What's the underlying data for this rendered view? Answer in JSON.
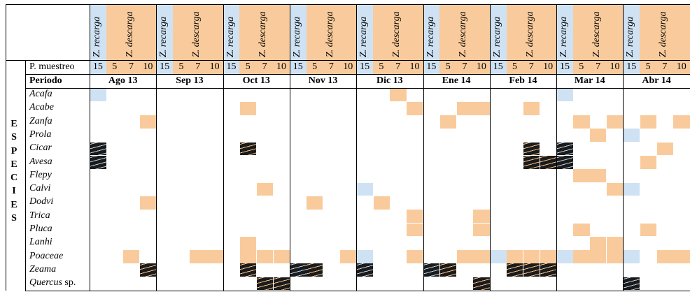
{
  "zone_headers": {
    "recarga": "Z. recarga",
    "descarga": "Z. descarga"
  },
  "row_labels": {
    "sampling": "P. muestreo",
    "period": "Periodo"
  },
  "sampling_points": [
    "15",
    "5",
    "7",
    "10"
  ],
  "months": [
    "Ago 13",
    "Sep 13",
    "Oct 13",
    "Nov 13",
    "Dic 13",
    "Ene 14",
    "Feb 14",
    "Mar 14",
    "Abr 14"
  ],
  "side_label": "E S P E C I E S",
  "species": [
    "Acafa",
    "Acabe",
    "Zanfa",
    "Prola",
    "Cicar",
    "Avesa",
    "Flepy",
    "Calvi",
    "Dodvi",
    "Trica",
    "Pluca",
    "Lanhi",
    "Poaceae",
    "Zeama",
    "Quercus"
  ],
  "species_suffix": {
    "Quercus": "sp."
  },
  "colors": {
    "recarga": "#cfe2f3",
    "descarga": "#f9cb9c",
    "hatched": "#1b1b1b"
  },
  "cells": [
    {
      "species": 0,
      "month": 0,
      "point": 0,
      "fill": "blue"
    },
    {
      "species": 0,
      "month": 4,
      "point": 2,
      "fill": "orange"
    },
    {
      "species": 0,
      "month": 7,
      "point": 0,
      "fill": "blue"
    },
    {
      "species": 1,
      "month": 2,
      "point": 1,
      "fill": "orange"
    },
    {
      "species": 1,
      "month": 4,
      "point": 3,
      "fill": "orange"
    },
    {
      "species": 1,
      "month": 5,
      "point": 2,
      "fill": "orange"
    },
    {
      "species": 1,
      "month": 5,
      "point": 3,
      "fill": "orange"
    },
    {
      "species": 1,
      "month": 6,
      "point": 2,
      "fill": "orange"
    },
    {
      "species": 2,
      "month": 0,
      "point": 3,
      "fill": "orange"
    },
    {
      "species": 2,
      "month": 5,
      "point": 1,
      "fill": "orange"
    },
    {
      "species": 2,
      "month": 7,
      "point": 1,
      "fill": "orange"
    },
    {
      "species": 2,
      "month": 7,
      "point": 3,
      "fill": "orange"
    },
    {
      "species": 2,
      "month": 8,
      "point": 1,
      "fill": "orange"
    },
    {
      "species": 2,
      "month": 8,
      "point": 3,
      "fill": "orange"
    },
    {
      "species": 3,
      "month": 7,
      "point": 2,
      "fill": "orange"
    },
    {
      "species": 3,
      "month": 8,
      "point": 0,
      "fill": "blue"
    },
    {
      "species": 4,
      "month": 0,
      "point": 0,
      "fill": "hatch-b"
    },
    {
      "species": 4,
      "month": 2,
      "point": 1,
      "fill": "hatch-o"
    },
    {
      "species": 4,
      "month": 6,
      "point": 2,
      "fill": "hatch-o"
    },
    {
      "species": 4,
      "month": 7,
      "point": 0,
      "fill": "hatch-b"
    },
    {
      "species": 4,
      "month": 8,
      "point": 2,
      "fill": "orange"
    },
    {
      "species": 5,
      "month": 0,
      "point": 0,
      "fill": "hatch-b"
    },
    {
      "species": 5,
      "month": 6,
      "point": 2,
      "fill": "hatch-o"
    },
    {
      "species": 5,
      "month": 6,
      "point": 3,
      "fill": "hatch-o"
    },
    {
      "species": 5,
      "month": 7,
      "point": 0,
      "fill": "hatch-b"
    },
    {
      "species": 5,
      "month": 8,
      "point": 1,
      "fill": "orange"
    },
    {
      "species": 6,
      "month": 7,
      "point": 1,
      "fill": "orange"
    },
    {
      "species": 6,
      "month": 7,
      "point": 2,
      "fill": "orange"
    },
    {
      "species": 7,
      "month": 2,
      "point": 2,
      "fill": "orange"
    },
    {
      "species": 7,
      "month": 4,
      "point": 0,
      "fill": "blue"
    },
    {
      "species": 7,
      "month": 7,
      "point": 3,
      "fill": "orange"
    },
    {
      "species": 7,
      "month": 8,
      "point": 0,
      "fill": "blue"
    },
    {
      "species": 8,
      "month": 0,
      "point": 3,
      "fill": "orange"
    },
    {
      "species": 8,
      "month": 3,
      "point": 1,
      "fill": "orange"
    },
    {
      "species": 8,
      "month": 4,
      "point": 1,
      "fill": "orange"
    },
    {
      "species": 9,
      "month": 4,
      "point": 3,
      "fill": "orange"
    },
    {
      "species": 9,
      "month": 5,
      "point": 3,
      "fill": "orange"
    },
    {
      "species": 10,
      "month": 4,
      "point": 3,
      "fill": "orange"
    },
    {
      "species": 10,
      "month": 5,
      "point": 3,
      "fill": "orange"
    },
    {
      "species": 10,
      "month": 7,
      "point": 1,
      "fill": "orange"
    },
    {
      "species": 10,
      "month": 8,
      "point": 1,
      "fill": "orange"
    },
    {
      "species": 11,
      "month": 2,
      "point": 1,
      "fill": "orange"
    },
    {
      "species": 11,
      "month": 7,
      "point": 2,
      "fill": "orange"
    },
    {
      "species": 11,
      "month": 7,
      "point": 3,
      "fill": "orange"
    },
    {
      "species": 12,
      "month": 0,
      "point": 2,
      "fill": "orange"
    },
    {
      "species": 12,
      "month": 1,
      "point": 2,
      "fill": "orange"
    },
    {
      "species": 12,
      "month": 1,
      "point": 3,
      "fill": "orange"
    },
    {
      "species": 12,
      "month": 2,
      "point": 1,
      "fill": "orange"
    },
    {
      "species": 12,
      "month": 2,
      "point": 2,
      "fill": "orange"
    },
    {
      "species": 12,
      "month": 2,
      "point": 3,
      "fill": "orange"
    },
    {
      "species": 12,
      "month": 3,
      "point": 3,
      "fill": "orange"
    },
    {
      "species": 12,
      "month": 4,
      "point": 0,
      "fill": "blue"
    },
    {
      "species": 12,
      "month": 4,
      "point": 3,
      "fill": "orange"
    },
    {
      "species": 12,
      "month": 5,
      "point": 2,
      "fill": "orange"
    },
    {
      "species": 12,
      "month": 5,
      "point": 3,
      "fill": "orange"
    },
    {
      "species": 12,
      "month": 6,
      "point": 0,
      "fill": "blue"
    },
    {
      "species": 12,
      "month": 6,
      "point": 1,
      "fill": "orange"
    },
    {
      "species": 12,
      "month": 6,
      "point": 2,
      "fill": "orange"
    },
    {
      "species": 12,
      "month": 6,
      "point": 3,
      "fill": "orange"
    },
    {
      "species": 12,
      "month": 7,
      "point": 0,
      "fill": "blue"
    },
    {
      "species": 12,
      "month": 7,
      "point": 1,
      "fill": "orange"
    },
    {
      "species": 12,
      "month": 7,
      "point": 2,
      "fill": "orange"
    },
    {
      "species": 12,
      "month": 7,
      "point": 3,
      "fill": "orange"
    },
    {
      "species": 12,
      "month": 8,
      "point": 0,
      "fill": "blue"
    },
    {
      "species": 12,
      "month": 8,
      "point": 2,
      "fill": "orange"
    },
    {
      "species": 12,
      "month": 8,
      "point": 3,
      "fill": "orange"
    },
    {
      "species": 13,
      "month": 0,
      "point": 3,
      "fill": "hatch-o"
    },
    {
      "species": 13,
      "month": 2,
      "point": 1,
      "fill": "hatch-o"
    },
    {
      "species": 13,
      "month": 3,
      "point": 0,
      "fill": "hatch-b"
    },
    {
      "species": 13,
      "month": 3,
      "point": 1,
      "fill": "hatch-o"
    },
    {
      "species": 13,
      "month": 4,
      "point": 0,
      "fill": "hatch-b"
    },
    {
      "species": 13,
      "month": 5,
      "point": 0,
      "fill": "hatch-b"
    },
    {
      "species": 13,
      "month": 5,
      "point": 1,
      "fill": "hatch-o"
    },
    {
      "species": 13,
      "month": 6,
      "point": 1,
      "fill": "hatch-o"
    },
    {
      "species": 13,
      "month": 6,
      "point": 2,
      "fill": "hatch-o"
    },
    {
      "species": 13,
      "month": 6,
      "point": 3,
      "fill": "hatch-o"
    },
    {
      "species": 14,
      "month": 2,
      "point": 2,
      "fill": "hatch-o"
    },
    {
      "species": 14,
      "month": 2,
      "point": 3,
      "fill": "hatch-o"
    },
    {
      "species": 14,
      "month": 5,
      "point": 3,
      "fill": "hatch-o"
    },
    {
      "species": 14,
      "month": 8,
      "point": 0,
      "fill": "hatch-b"
    }
  ]
}
